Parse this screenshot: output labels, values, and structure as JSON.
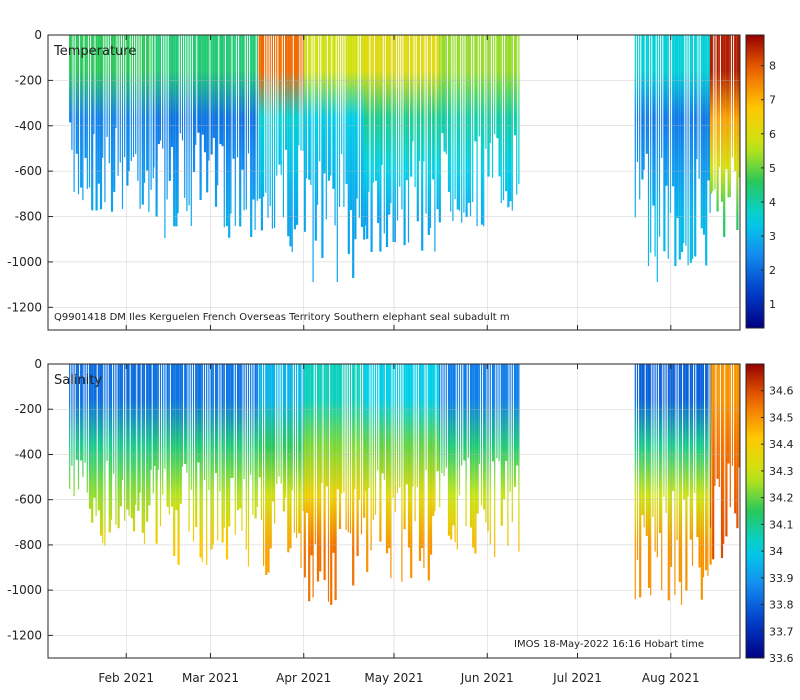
{
  "chart_data": [
    {
      "type": "heatmap",
      "title": "Temperature",
      "annotation": "Q9901418 DM Iles Kerguelen French Overseas Territory Southern elephant seal subadult m",
      "x_tick_labels": [
        "Feb 2021",
        "Mar 2021",
        "Apr 2021",
        "May 2021",
        "Jun 2021",
        "Jul 2021",
        "Aug 2021"
      ],
      "x_tick_days": [
        31,
        59,
        90,
        120,
        151,
        181,
        212
      ],
      "x_range_days": [
        5,
        235
      ],
      "y_ticks": [
        0,
        -200,
        -400,
        -600,
        -800,
        -1000,
        -1200
      ],
      "y_tick_labels": [
        "0",
        "-200",
        "-400",
        "-600",
        "-800",
        "-1000",
        "-1200"
      ],
      "ylim": [
        -1300,
        0
      ],
      "colorbar": {
        "range": [
          0.3,
          8.9
        ],
        "ticks": [
          1,
          2,
          3,
          4,
          5,
          6,
          7,
          8
        ],
        "tick_labels": [
          "1",
          "2",
          "3",
          "4",
          "5",
          "6",
          "7",
          "8"
        ]
      },
      "approx_profile_segments": [
        {
          "start_day": 12,
          "end_day": 40,
          "surface": 4.6,
          "mid": 2.3,
          "deep": 2.9,
          "max_depth": 700
        },
        {
          "start_day": 40,
          "end_day": 75,
          "surface": 4.4,
          "mid": 2.1,
          "deep": 2.9,
          "max_depth": 780
        },
        {
          "start_day": 75,
          "end_day": 90,
          "surface": 7.8,
          "mid": 3.6,
          "deep": 2.8,
          "max_depth": 850
        },
        {
          "start_day": 90,
          "end_day": 110,
          "surface": 5.8,
          "mid": 3.4,
          "deep": 2.8,
          "max_depth": 950
        },
        {
          "start_day": 110,
          "end_day": 135,
          "surface": 6.1,
          "mid": 4.2,
          "deep": 2.8,
          "max_depth": 850
        },
        {
          "start_day": 135,
          "end_day": 162,
          "surface": 5.3,
          "mid": 4.0,
          "deep": 2.9,
          "max_depth": 750
        },
        {
          "start_day": 200,
          "end_day": 225,
          "surface": 3.6,
          "mid": 2.2,
          "deep": 3.1,
          "max_depth": 950
        },
        {
          "start_day": 225,
          "end_day": 235,
          "surface": 8.6,
          "mid": 7.2,
          "deep": 4.5,
          "max_depth": 800
        }
      ]
    },
    {
      "type": "heatmap",
      "title": "Salinity",
      "annotation": "IMOS 18-May-2022 16:16 Hobart time",
      "x_tick_labels": [
        "Feb 2021",
        "Mar 2021",
        "Apr 2021",
        "May 2021",
        "Jun 2021",
        "Jul 2021",
        "Aug 2021"
      ],
      "x_tick_days": [
        31,
        59,
        90,
        120,
        151,
        181,
        212
      ],
      "x_range_days": [
        5,
        235
      ],
      "y_ticks": [
        0,
        -200,
        -400,
        -600,
        -800,
        -1000,
        -1200
      ],
      "y_tick_labels": [
        "0",
        "-200",
        "-400",
        "-600",
        "-800",
        "-1000",
        "-1200"
      ],
      "ylim": [
        -1300,
        0
      ],
      "colorbar": {
        "range": [
          33.6,
          34.7
        ],
        "ticks": [
          33.6,
          33.7,
          33.8,
          33.9,
          34,
          34.1,
          34.2,
          34.3,
          34.4,
          34.5,
          34.6
        ],
        "tick_labels": [
          "33.6",
          "33.7",
          "33.8",
          "33.9",
          "34",
          "34.1",
          "34.2",
          "34.3",
          "34.4",
          "34.5",
          "34.6"
        ]
      },
      "approx_profile_segments": [
        {
          "start_day": 12,
          "end_day": 40,
          "surface": 33.82,
          "mid": 34.1,
          "deep": 34.38,
          "max_depth": 700
        },
        {
          "start_day": 40,
          "end_day": 75,
          "surface": 33.83,
          "mid": 34.12,
          "deep": 34.42,
          "max_depth": 780
        },
        {
          "start_day": 75,
          "end_day": 90,
          "surface": 33.95,
          "mid": 34.15,
          "deep": 34.48,
          "max_depth": 850
        },
        {
          "start_day": 90,
          "end_day": 110,
          "surface": 34.05,
          "mid": 34.22,
          "deep": 34.55,
          "max_depth": 950
        },
        {
          "start_day": 110,
          "end_day": 135,
          "surface": 34.0,
          "mid": 34.2,
          "deep": 34.5,
          "max_depth": 850
        },
        {
          "start_day": 135,
          "end_day": 162,
          "surface": 33.85,
          "mid": 34.12,
          "deep": 34.45,
          "max_depth": 750
        },
        {
          "start_day": 200,
          "end_day": 225,
          "surface": 33.8,
          "mid": 34.1,
          "deep": 34.5,
          "max_depth": 950
        },
        {
          "start_day": 225,
          "end_day": 235,
          "surface": 34.5,
          "mid": 34.55,
          "deep": 34.6,
          "max_depth": 800
        }
      ]
    }
  ]
}
